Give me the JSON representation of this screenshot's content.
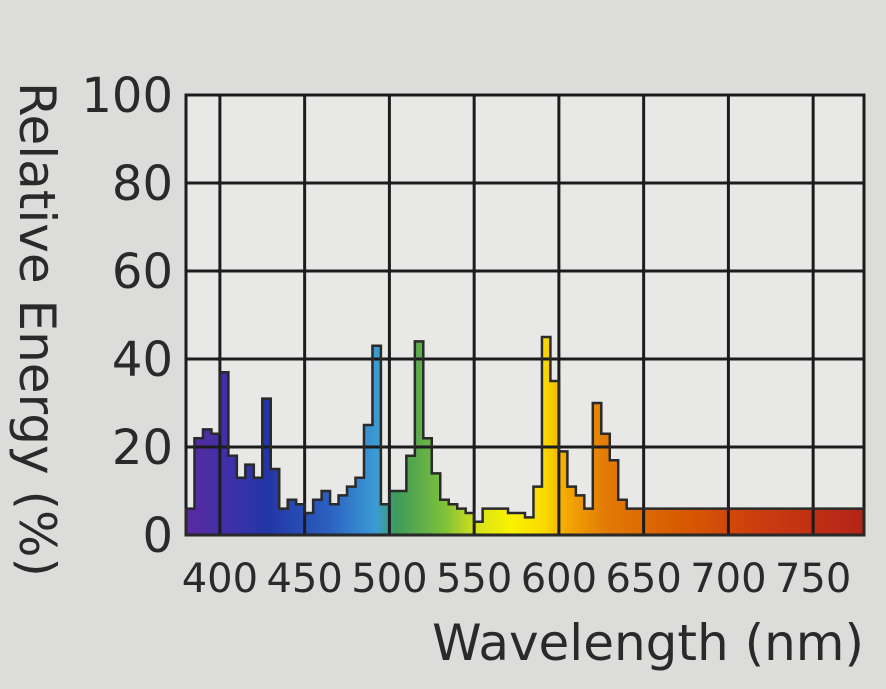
{
  "chart_data": {
    "type": "area",
    "xlabel": "Wavelength (nm)",
    "ylabel": "Relative Energy (%)",
    "xlim": [
      380,
      780
    ],
    "ylim": [
      0,
      100
    ],
    "x_ticks": [
      400,
      450,
      500,
      550,
      600,
      650,
      700,
      750
    ],
    "y_ticks": [
      0,
      20,
      40,
      60,
      80,
      100
    ],
    "grid": true,
    "legend": "none",
    "series": [
      {
        "x": [
          380,
          385,
          390,
          395,
          400,
          405,
          410,
          415,
          420,
          425,
          430,
          435,
          440,
          445,
          450,
          455,
          460,
          465,
          470,
          475,
          480,
          485,
          490,
          495,
          500,
          505,
          510,
          515,
          520,
          525,
          530,
          535,
          540,
          545,
          550,
          555,
          560,
          565,
          570,
          575,
          580,
          585,
          590,
          595,
          600,
          605,
          610,
          615,
          620,
          625,
          630,
          635,
          640,
          645,
          650,
          655,
          660,
          665,
          670,
          675,
          680,
          685,
          690,
          695,
          700,
          705,
          710,
          715,
          720,
          725,
          730,
          735,
          740,
          745,
          750,
          755,
          760,
          765,
          770,
          775,
          780
        ],
        "y": [
          6,
          22,
          24,
          23,
          37,
          18,
          13,
          16,
          13,
          31,
          15,
          6,
          8,
          7,
          5,
          8,
          10,
          7,
          9,
          11,
          13,
          25,
          43,
          7,
          10,
          10,
          18,
          44,
          22,
          14,
          8,
          7,
          6,
          5,
          3,
          6,
          6,
          6,
          5,
          5,
          4,
          11,
          45,
          35,
          19,
          11,
          9,
          6,
          30,
          23,
          17,
          8,
          6,
          6,
          6,
          6,
          6,
          6,
          6,
          6,
          6,
          6,
          6,
          6,
          6,
          6,
          6,
          6,
          6,
          6,
          6,
          6,
          6,
          6,
          6,
          6,
          6,
          6,
          6,
          6,
          6
        ]
      }
    ]
  }
}
